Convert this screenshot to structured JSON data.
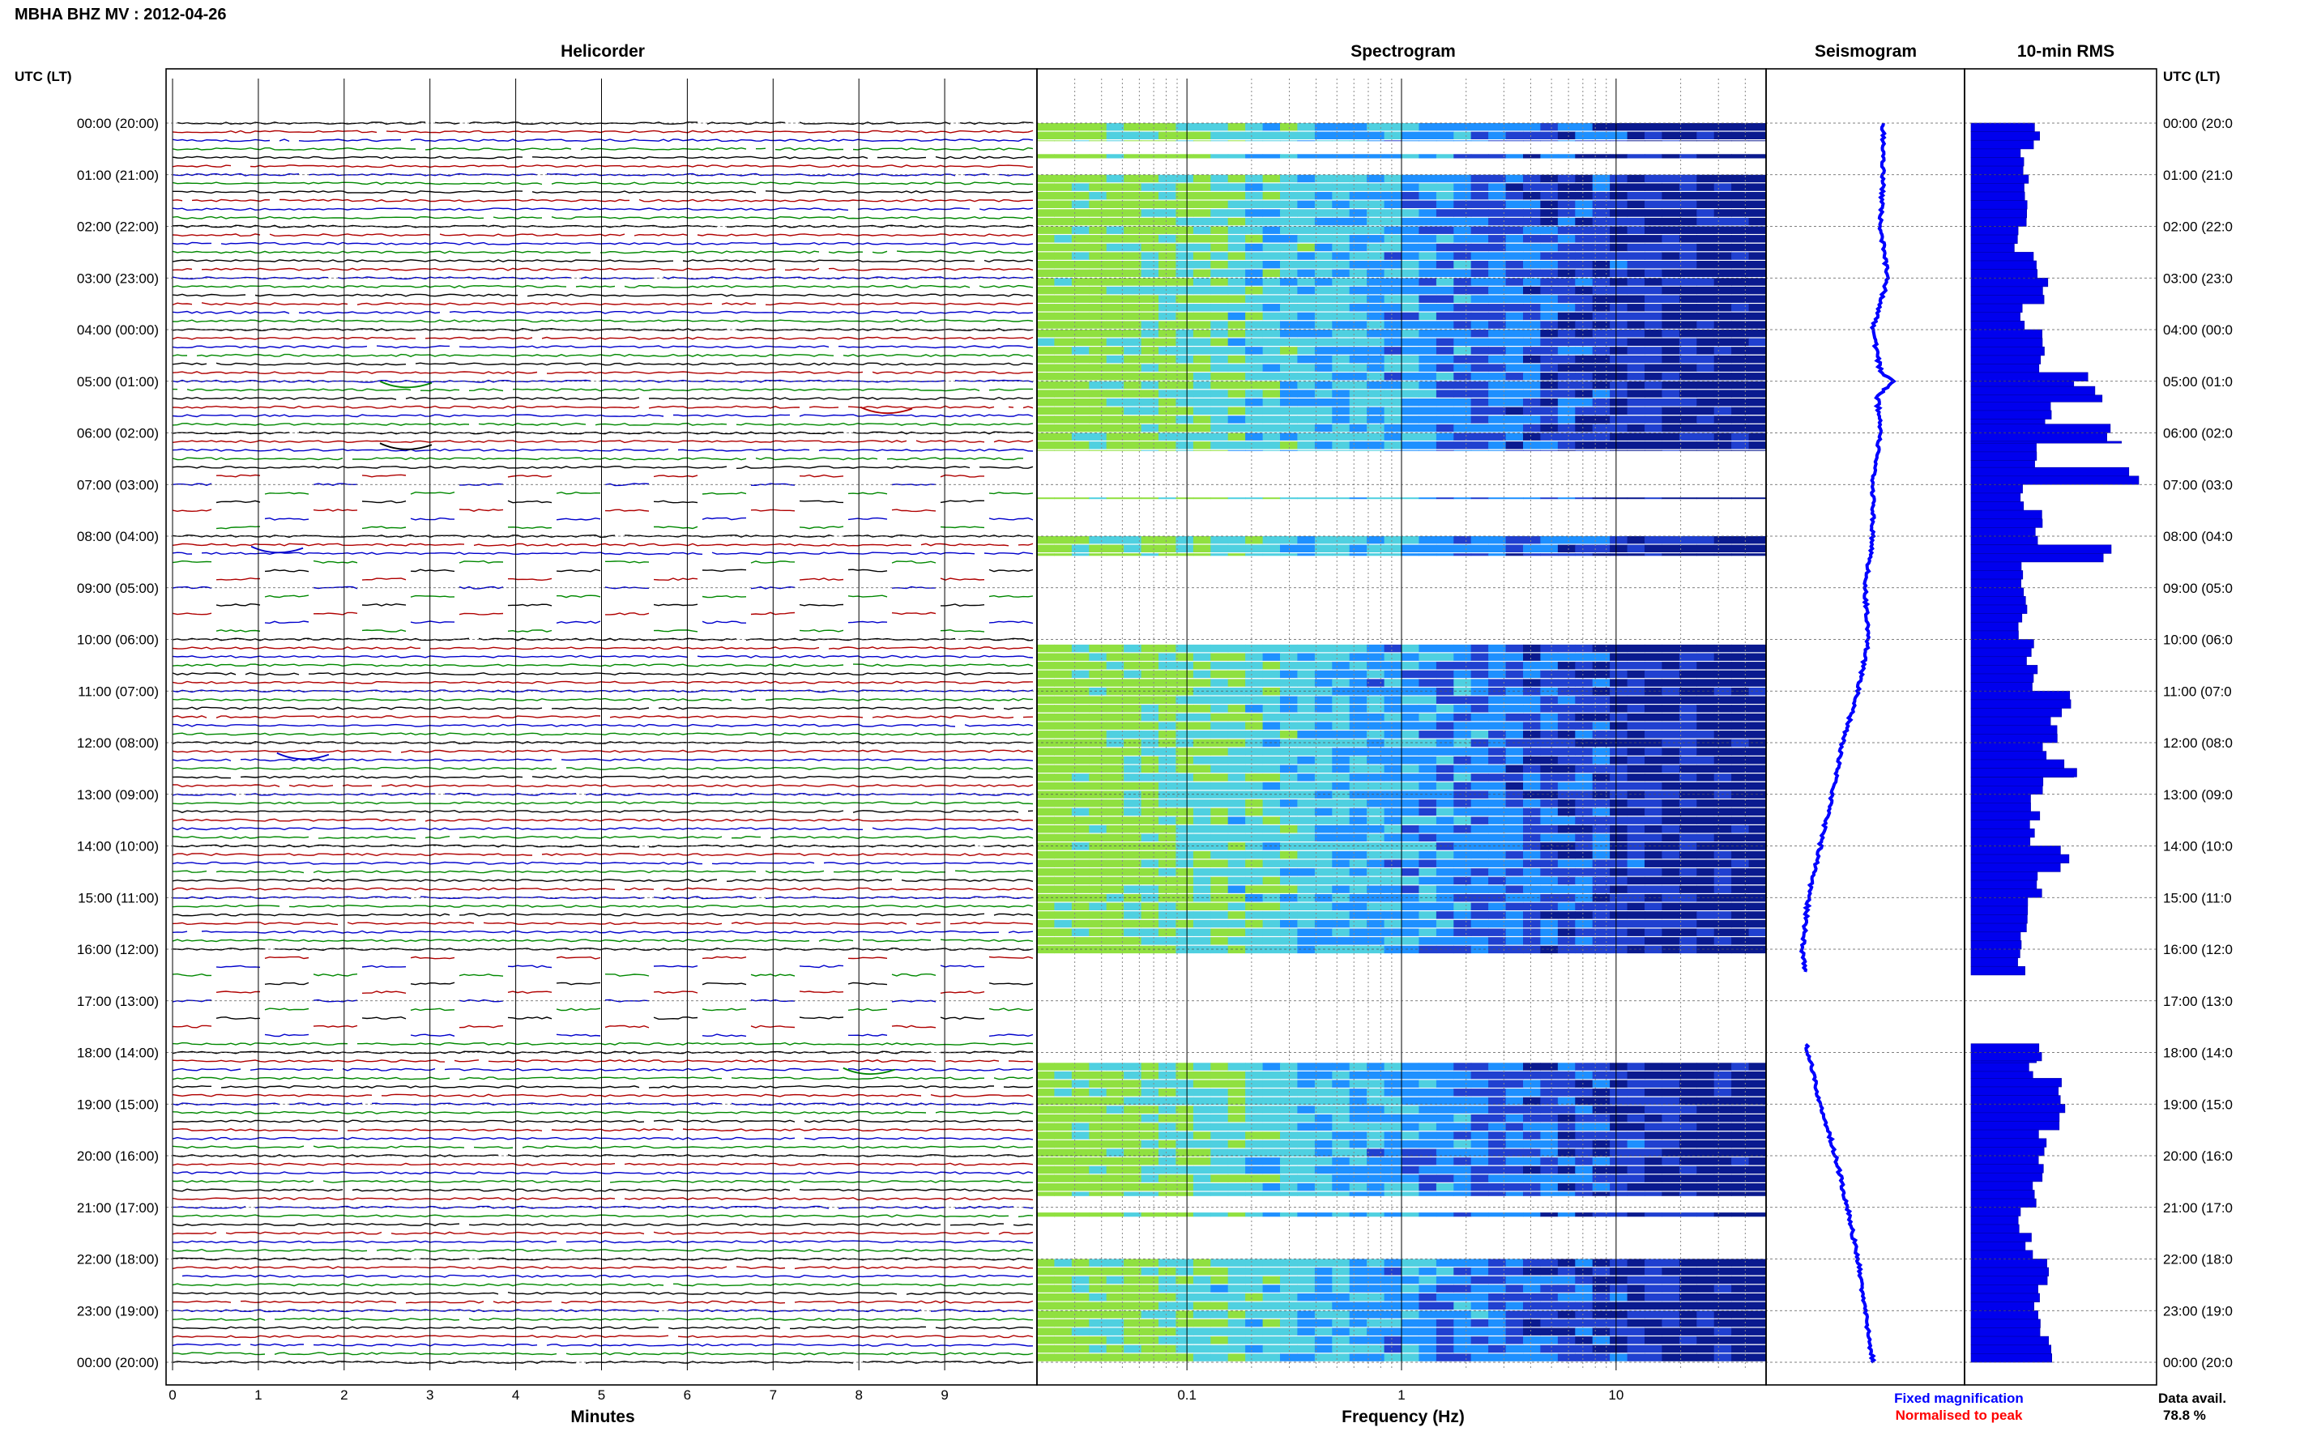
{
  "page_title": "MBHA BHZ MV : 2012-04-26",
  "chart_data": [
    {
      "id": "helicorder",
      "type": "line",
      "title": "Helicorder",
      "xlabel": "Minutes",
      "x_ticks": [
        "0",
        "1",
        "2",
        "3",
        "4",
        "5",
        "6",
        "7",
        "8",
        "9"
      ],
      "xlim": [
        0,
        10
      ],
      "row_count": 145,
      "row_minutes": 10,
      "trace_colors": [
        "#000000",
        "#b00000",
        "#0000cc",
        "#008800"
      ],
      "gaps_hours": [
        [
          6.8,
          8.0
        ],
        [
          8.4,
          10.0
        ],
        [
          16.1,
          17.8
        ]
      ],
      "events": [
        {
          "hour": 5.0,
          "minute": 2.7,
          "color": "#008800"
        },
        {
          "hour": 5.5,
          "minute": 8.3,
          "color": "#b00000"
        },
        {
          "hour": 6.2,
          "minute": 2.7,
          "color": "#000000"
        },
        {
          "hour": 8.2,
          "minute": 1.2,
          "color": "#0000cc"
        },
        {
          "hour": 12.2,
          "minute": 1.5,
          "color": "#0000cc"
        },
        {
          "hour": 18.3,
          "minute": 8.1,
          "color": "#008800"
        }
      ]
    },
    {
      "id": "spectrogram",
      "type": "heatmap",
      "title": "Spectrogram",
      "xlabel": "Frequency (Hz)",
      "x_scale": "log",
      "xlim": [
        0.02,
        50
      ],
      "x_ticks": [
        "0.1",
        "1",
        "10"
      ],
      "x_tick_values": [
        0.1,
        1,
        10
      ],
      "colors": {
        "low": "#0a1a8f",
        "mid": "#1e90ff",
        "high": "#90e040"
      },
      "data_periods_hours": [
        [
          0.0,
          0.35
        ],
        [
          0.6,
          0.7
        ],
        [
          1.0,
          6.35
        ],
        [
          7.25,
          7.3
        ],
        [
          8.0,
          8.4
        ],
        [
          10.1,
          16.1
        ],
        [
          18.2,
          20.8
        ],
        [
          21.1,
          21.2
        ],
        [
          22.0,
          24.0
        ]
      ]
    },
    {
      "id": "seismogram",
      "type": "line",
      "title": "Seismogram",
      "color": "#0000ff",
      "hours": [
        0,
        1,
        2,
        3,
        4,
        4.8,
        5.0,
        5.3,
        6,
        7,
        8,
        9,
        10,
        11,
        12,
        13,
        14,
        15,
        16,
        16.4,
        17.8,
        18,
        19,
        20,
        21,
        22,
        23,
        24
      ],
      "values": [
        0.62,
        0.62,
        0.6,
        0.65,
        0.55,
        0.6,
        0.68,
        0.58,
        0.6,
        0.55,
        0.55,
        0.5,
        0.52,
        0.45,
        0.35,
        0.28,
        0.2,
        0.12,
        0.08,
        0.1,
        0.1,
        0.12,
        0.2,
        0.3,
        0.38,
        0.45,
        0.5,
        0.55
      ]
    },
    {
      "id": "rms",
      "type": "bar",
      "title": "10-min RMS",
      "orientation": "horizontal",
      "color": "#0000ee",
      "bin_minutes": 10,
      "bars": [
        {
          "hour": 0.0,
          "value": 0.4
        },
        {
          "hour": 0.5,
          "value": 0.3
        },
        {
          "hour": 1.0,
          "value": 0.32
        },
        {
          "hour": 1.5,
          "value": 0.35
        },
        {
          "hour": 2.0,
          "value": 0.28
        },
        {
          "hour": 2.5,
          "value": 0.38
        },
        {
          "hour": 3.0,
          "value": 0.45
        },
        {
          "hour": 3.5,
          "value": 0.3
        },
        {
          "hour": 4.0,
          "value": 0.42
        },
        {
          "hour": 4.5,
          "value": 0.4
        },
        {
          "hour": 4.83,
          "value": 0.65
        },
        {
          "hour": 5.1,
          "value": 0.8
        },
        {
          "hour": 5.4,
          "value": 0.45
        },
        {
          "hour": 5.83,
          "value": 0.88
        },
        {
          "hour": 6.2,
          "value": 0.4
        },
        {
          "hour": 6.67,
          "value": 0.98
        },
        {
          "hour": 7.0,
          "value": 0.3
        },
        {
          "hour": 7.5,
          "value": 0.4
        },
        {
          "hour": 8.17,
          "value": 0.82
        },
        {
          "hour": 8.5,
          "value": 0.3
        },
        {
          "hour": 9.0,
          "value": 0.32
        },
        {
          "hour": 9.5,
          "value": 0.3
        },
        {
          "hour": 10.0,
          "value": 0.35
        },
        {
          "hour": 10.5,
          "value": 0.38
        },
        {
          "hour": 11.0,
          "value": 0.58
        },
        {
          "hour": 11.5,
          "value": 0.5
        },
        {
          "hour": 12.0,
          "value": 0.45
        },
        {
          "hour": 12.33,
          "value": 0.6
        },
        {
          "hour": 12.67,
          "value": 0.42
        },
        {
          "hour": 13.0,
          "value": 0.38
        },
        {
          "hour": 13.5,
          "value": 0.36
        },
        {
          "hour": 14.0,
          "value": 0.55
        },
        {
          "hour": 14.5,
          "value": 0.4
        },
        {
          "hour": 15.0,
          "value": 0.35
        },
        {
          "hour": 15.5,
          "value": 0.32
        },
        {
          "hour": 16.0,
          "value": 0.3
        },
        {
          "hour": 17.83,
          "value": 0.4
        },
        {
          "hour": 18.2,
          "value": 0.35
        },
        {
          "hour": 18.5,
          "value": 0.5
        },
        {
          "hour": 19.0,
          "value": 0.52
        },
        {
          "hour": 19.5,
          "value": 0.42
        },
        {
          "hour": 20.0,
          "value": 0.4
        },
        {
          "hour": 20.5,
          "value": 0.38
        },
        {
          "hour": 21.0,
          "value": 0.3
        },
        {
          "hour": 21.5,
          "value": 0.35
        },
        {
          "hour": 22.0,
          "value": 0.45
        },
        {
          "hour": 22.5,
          "value": 0.38
        },
        {
          "hour": 23.0,
          "value": 0.42
        },
        {
          "hour": 23.5,
          "value": 0.48
        }
      ]
    }
  ],
  "time_axis": {
    "left_label": "UTC (LT)",
    "right_label": "UTC (LT)",
    "ticks": [
      "00:00 (20:00)",
      "01:00 (21:00)",
      "02:00 (22:00)",
      "03:00 (23:00)",
      "04:00 (00:00)",
      "05:00 (01:00)",
      "06:00 (02:00)",
      "07:00 (03:00)",
      "08:00 (04:00)",
      "09:00 (05:00)",
      "10:00 (06:00)",
      "11:00 (07:00)",
      "12:00 (08:00)",
      "13:00 (09:00)",
      "14:00 (10:00)",
      "15:00 (11:00)",
      "16:00 (12:00)",
      "17:00 (13:00)",
      "18:00 (14:00)",
      "19:00 (15:00)",
      "20:00 (16:00)",
      "21:00 (17:00)",
      "22:00 (18:00)",
      "23:00 (19:00)",
      "00:00 (20:00)"
    ],
    "right_ticks": [
      "00:00 (20:0",
      "01:00 (21:0",
      "02:00 (22:0",
      "03:00 (23:0",
      "04:00 (00:0",
      "05:00 (01:0",
      "06:00 (02:0",
      "07:00 (03:0",
      "08:00 (04:0",
      "09:00 (05:0",
      "10:00 (06:0",
      "11:00 (07:0",
      "12:00 (08:0",
      "13:00 (09:0",
      "14:00 (10:0",
      "15:00 (11:0",
      "16:00 (12:0",
      "17:00 (13:0",
      "18:00 (14:0",
      "19:00 (15:0",
      "20:00 (16:0",
      "21:00 (17:0",
      "22:00 (18:0",
      "23:00 (19:0",
      "00:00 (20:0"
    ]
  },
  "legend": {
    "fixed": "Fixed magnification",
    "fixed_color": "#0000ff",
    "normalised": "Normalised to peak",
    "normalised_color": "#ff0000"
  },
  "data_avail": {
    "label": "Data avail.",
    "value": "78.8 %"
  }
}
